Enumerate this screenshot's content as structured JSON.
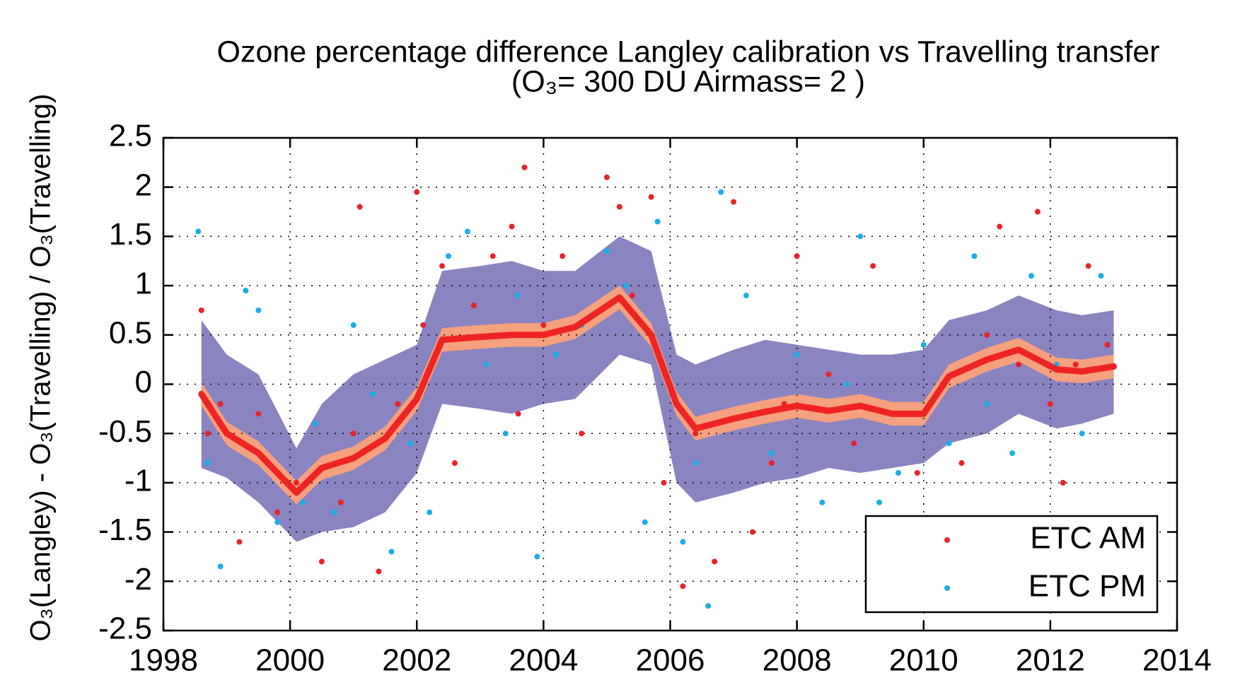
{
  "chart_data": {
    "type": "scatter",
    "title": "Ozone percentage difference  Langley  calibration  vs Travelling transfer",
    "subtitle": "(O₃= 300 DU  Airmass= 2 )",
    "y_label": "O₃(Langley) - O₃(Travelling) / O₃(Travelling)",
    "xlim": [
      1998,
      2014
    ],
    "xticks": [
      1998,
      2000,
      2002,
      2004,
      2006,
      2008,
      2010,
      2012,
      2014
    ],
    "ylim": [
      -2.5,
      2.5
    ],
    "yticks": [
      -2.5,
      -2,
      -1.5,
      -1,
      -0.5,
      0,
      0.5,
      1,
      1.5,
      2,
      2.5
    ],
    "grid": true,
    "legend": "lower right",
    "bands": [
      {
        "color": "#8a84c0",
        "x": [
          1998.6,
          1999.0,
          1999.5,
          2000.1,
          2000.5,
          2001.0,
          2001.5,
          2002.0,
          2002.4,
          2003.0,
          2003.5,
          2004.0,
          2004.5,
          2005.2,
          2005.7,
          2006.1,
          2006.4,
          2007.0,
          2007.5,
          2008.0,
          2008.5,
          2009.0,
          2009.5,
          2010.0,
          2010.4,
          2011.0,
          2011.5,
          2012.1,
          2012.5,
          2013.0
        ],
        "lower": [
          -0.85,
          -0.95,
          -1.2,
          -1.6,
          -1.5,
          -1.45,
          -1.3,
          -0.9,
          -0.2,
          -0.25,
          -0.3,
          -0.2,
          -0.15,
          0.3,
          0.2,
          -1.0,
          -1.2,
          -1.1,
          -1.0,
          -0.95,
          -0.85,
          -0.9,
          -0.85,
          -0.8,
          -0.6,
          -0.5,
          -0.3,
          -0.45,
          -0.4,
          -0.3
        ],
        "upper": [
          0.65,
          0.3,
          0.1,
          -0.65,
          -0.2,
          0.1,
          0.25,
          0.4,
          1.15,
          1.2,
          1.25,
          1.15,
          1.15,
          1.5,
          1.35,
          0.3,
          0.2,
          0.35,
          0.45,
          0.4,
          0.35,
          0.3,
          0.3,
          0.35,
          0.65,
          0.75,
          0.9,
          0.75,
          0.7,
          0.75
        ]
      },
      {
        "color": "#f5a07e",
        "x": [
          1998.6,
          1999.0,
          1999.5,
          2000.1,
          2000.5,
          2001.0,
          2001.5,
          2002.0,
          2002.4,
          2003.0,
          2003.5,
          2004.0,
          2004.5,
          2005.2,
          2005.7,
          2006.1,
          2006.4,
          2007.0,
          2007.5,
          2008.0,
          2008.5,
          2009.0,
          2009.5,
          2010.0,
          2010.4,
          2011.0,
          2011.5,
          2012.1,
          2012.5,
          2013.0
        ],
        "lower": [
          -0.22,
          -0.62,
          -0.82,
          -1.22,
          -0.97,
          -0.87,
          -0.67,
          -0.27,
          0.33,
          0.36,
          0.38,
          0.38,
          0.46,
          0.76,
          0.38,
          -0.32,
          -0.57,
          -0.47,
          -0.4,
          -0.34,
          -0.39,
          -0.34,
          -0.42,
          -0.42,
          -0.04,
          0.13,
          0.23,
          0.03,
          0.01,
          0.06
        ],
        "upper": [
          0.02,
          -0.38,
          -0.58,
          -0.98,
          -0.73,
          -0.63,
          -0.43,
          -0.03,
          0.57,
          0.6,
          0.62,
          0.62,
          0.7,
          1.0,
          0.62,
          -0.08,
          -0.33,
          -0.23,
          -0.16,
          -0.1,
          -0.15,
          -0.1,
          -0.18,
          -0.18,
          0.2,
          0.37,
          0.47,
          0.27,
          0.25,
          0.3
        ]
      }
    ],
    "smooth": {
      "color": "#ee2424",
      "x": [
        1998.6,
        1999.0,
        1999.5,
        2000.1,
        2000.5,
        2001.0,
        2001.5,
        2002.0,
        2002.4,
        2003.0,
        2003.5,
        2004.0,
        2004.5,
        2005.2,
        2005.7,
        2006.1,
        2006.4,
        2007.0,
        2007.5,
        2008.0,
        2008.5,
        2009.0,
        2009.5,
        2010.0,
        2010.4,
        2011.0,
        2011.5,
        2012.1,
        2012.5,
        2013.0
      ],
      "values": [
        -0.1,
        -0.5,
        -0.7,
        -1.1,
        -0.85,
        -0.75,
        -0.55,
        -0.15,
        0.45,
        0.48,
        0.5,
        0.5,
        0.58,
        0.88,
        0.5,
        -0.2,
        -0.45,
        -0.35,
        -0.28,
        -0.22,
        -0.27,
        -0.22,
        -0.3,
        -0.3,
        0.08,
        0.25,
        0.35,
        0.15,
        0.13,
        0.18
      ]
    },
    "series": [
      {
        "name": "ETC AM",
        "color": "#e8232a",
        "x": [
          1998.6,
          1998.7,
          1998.9,
          1999.2,
          1999.5,
          1999.8,
          2000.1,
          2000.5,
          2000.8,
          2001.1,
          2001.0,
          2001.4,
          2001.7,
          2002.0,
          2002.1,
          2002.4,
          2002.6,
          2002.9,
          2003.2,
          2003.5,
          2003.7,
          2003.6,
          2004.0,
          2004.3,
          2004.6,
          2005.0,
          2005.2,
          2005.4,
          2005.7,
          2005.9,
          2006.2,
          2006.4,
          2006.7,
          2007.0,
          2007.3,
          2007.6,
          2007.8,
          2008.0,
          2008.5,
          2008.9,
          2009.2,
          2009.5,
          2009.9,
          2010.3,
          2010.6,
          2011.0,
          2011.2,
          2011.5,
          2011.8,
          2012.0,
          2012.2,
          2012.4,
          2012.6,
          2012.9
        ],
        "values": [
          0.75,
          -0.5,
          -0.2,
          -1.6,
          -0.3,
          -1.3,
          -1.0,
          -1.8,
          -1.2,
          1.8,
          -0.5,
          -1.9,
          -0.2,
          1.95,
          0.6,
          1.2,
          -0.8,
          0.8,
          1.3,
          1.6,
          2.2,
          -0.3,
          0.6,
          1.3,
          -0.5,
          2.1,
          1.8,
          0.9,
          1.9,
          -1.0,
          -2.05,
          -0.5,
          -1.8,
          1.85,
          -1.5,
          -0.8,
          -0.2,
          1.3,
          0.1,
          -0.6,
          1.2,
          -0.3,
          -0.9,
          0.0,
          -0.8,
          0.5,
          1.6,
          0.2,
          1.75,
          -0.2,
          -1.0,
          0.2,
          1.2,
          0.4
        ]
      },
      {
        "name": "ETC PM",
        "color": "#1aaee6",
        "x": [
          1998.55,
          1998.7,
          1998.9,
          1999.3,
          1999.5,
          1999.8,
          2000.2,
          2000.4,
          2000.7,
          2001.0,
          2001.3,
          2001.6,
          2001.9,
          2002.2,
          2002.5,
          2002.8,
          2003.1,
          2003.4,
          2003.6,
          2003.9,
          2004.2,
          2004.6,
          2005.0,
          2005.3,
          2005.6,
          2005.8,
          2006.2,
          2006.4,
          2006.6,
          2006.8,
          2007.2,
          2007.6,
          2008.0,
          2008.4,
          2008.8,
          2009.0,
          2009.3,
          2009.6,
          2010.0,
          2010.4,
          2010.8,
          2011.0,
          2011.4,
          2011.7,
          2012.1,
          2012.5,
          2012.8
        ],
        "values": [
          1.55,
          -0.8,
          -1.85,
          0.95,
          0.75,
          -1.4,
          -1.2,
          -0.4,
          -1.3,
          0.6,
          -0.1,
          -1.7,
          -0.6,
          -1.3,
          1.3,
          1.55,
          0.2,
          -0.5,
          0.9,
          -1.75,
          0.3,
          0.6,
          1.35,
          1.0,
          -1.4,
          1.65,
          -1.6,
          -0.8,
          -2.25,
          1.95,
          0.9,
          -0.7,
          0.3,
          -1.2,
          0.0,
          1.5,
          -1.2,
          -0.9,
          0.4,
          -0.6,
          1.3,
          -0.2,
          -0.7,
          1.1,
          0.2,
          -0.5,
          1.1
        ]
      }
    ]
  }
}
